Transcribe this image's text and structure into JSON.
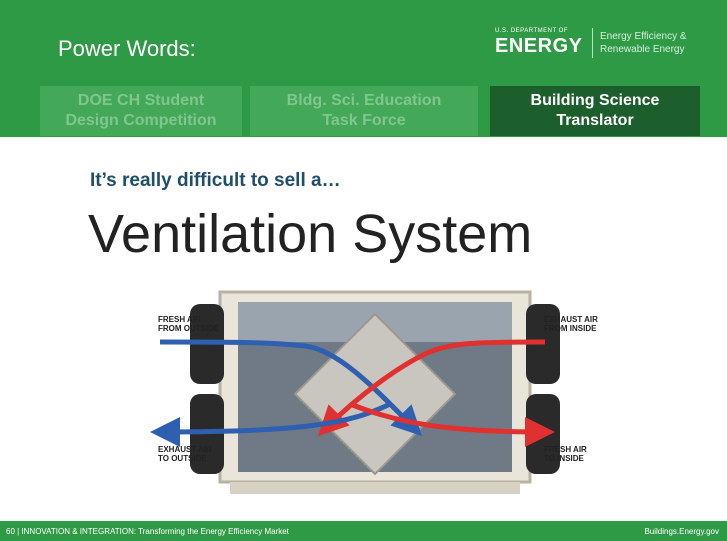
{
  "header": {
    "title": "Power Words:",
    "logo": {
      "department": "U.S. DEPARTMENT OF",
      "agency": "ENERGY",
      "office": [
        "Energy Efficiency &",
        "Renewable Energy"
      ]
    }
  },
  "tabs": [
    {
      "lines": [
        "DOE CH Student",
        "Design Competition"
      ],
      "active": false
    },
    {
      "lines": [
        "Bldg. Sci. Education",
        "Task Force"
      ],
      "active": false
    },
    {
      "lines": [
        "Building Science",
        "Translator"
      ],
      "active": true
    }
  ],
  "subtitle": "It’s really difficult to sell a…",
  "heading": "Ventilation System",
  "diagram": {
    "labels": [
      [
        "FRESH AIR",
        "FROM OUTSIDE"
      ],
      [
        "EXHAUST AIR",
        "FROM INSIDE"
      ],
      [
        "EXHAUST AIR",
        "TO OUTSIDE"
      ],
      [
        "FRESH AIR",
        "TO INSIDE"
      ]
    ]
  },
  "footer": {
    "left": "60 | INNOVATION & INTEGRATION: Transforming the Energy Efficiency Market",
    "right": "Buildings.Energy.gov"
  }
}
